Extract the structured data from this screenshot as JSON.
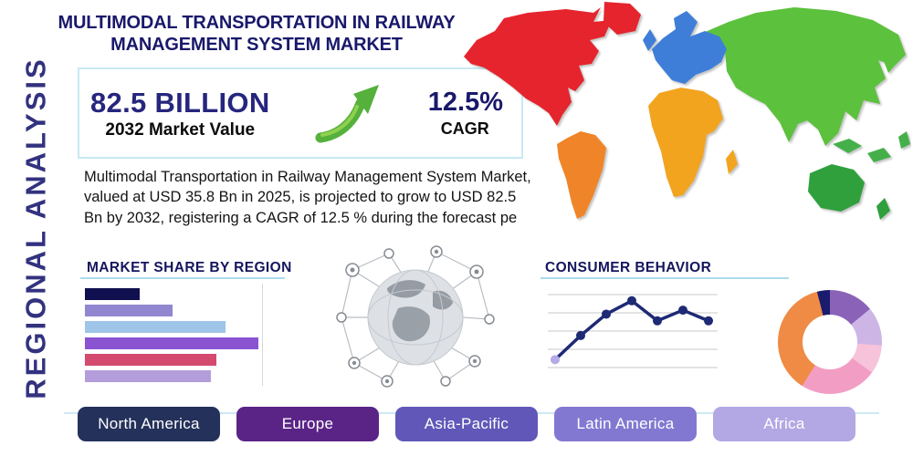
{
  "side_label": "REGIONAL ANALYSIS",
  "title": {
    "line1": "MULTIMODAL TRANSPORTATION IN RAILWAY",
    "line2": "MANAGEMENT SYSTEM MARKET"
  },
  "stats": {
    "market_value": "82.5 BILLION",
    "market_value_caption": "2032 Market Value",
    "cagr_value": "12.5%",
    "cagr_caption": "CAGR"
  },
  "description": "Multimodal Transportation in Railway Management System Market, valued at USD 35.8 Bn in 2025, is projected to grow to USD 82.5 Bn by 2032, registering a CAGR of 12.5 % during the forecast pe",
  "sections": {
    "market_share_title": "MARKET SHARE BY REGION",
    "consumer_behavior_title": "CONSUMER BEHAVIOR"
  },
  "region_buttons": [
    {
      "label": "North America",
      "color": "#24315b"
    },
    {
      "label": "Europe",
      "color": "#5a2487"
    },
    {
      "label": "Asia-Pacific",
      "color": "#6057b8"
    },
    {
      "label": "Latin America",
      "color": "#8378d1"
    },
    {
      "label": "Africa",
      "color": "#b3a7e4"
    }
  ],
  "icons": {
    "growth-arrow-icon": {
      "shape": "curved-arrow-up-right",
      "color": "#55b03c"
    },
    "globe-network-icon": {
      "shape": "globe-with-network-nodes",
      "color": "#a9adb3"
    },
    "world-map": {
      "shape": "world-continents-map"
    }
  },
  "accent_colors": {
    "navy_heading": "#19196b",
    "teal_line": "#c9e8f4"
  },
  "chart_data": [
    {
      "id": "market-share-by-region",
      "type": "bar",
      "title": "MARKET SHARE BY REGION",
      "orientation": "horizontal",
      "categories": [
        "",
        "",
        "",
        "",
        "",
        ""
      ],
      "values": [
        30,
        48,
        77,
        95,
        72,
        69
      ],
      "colors": [
        "#101050",
        "#9186d0",
        "#9fc5e8",
        "#8a53d2",
        "#d44a6e",
        "#b49ddb"
      ],
      "xlim": [
        0,
        100
      ],
      "grid": false
    },
    {
      "id": "consumer-behavior-trend",
      "type": "line",
      "title": "CONSUMER BEHAVIOR",
      "x": [
        1,
        2,
        3,
        4,
        5,
        6,
        7
      ],
      "values": [
        1.0,
        2.8,
        4.4,
        5.4,
        3.9,
        4.7,
        3.9
      ],
      "y_range": [
        0,
        6
      ],
      "line_color": "#1e2a74",
      "first_point_color": "#b5a9e6",
      "grid": true
    },
    {
      "id": "regional-share-donut",
      "type": "pie",
      "donut": true,
      "slice_order": "clockwise-from-top",
      "slices": [
        {
          "value": 14,
          "color": "#8a63b8"
        },
        {
          "value": 12,
          "color": "#cdb6e6"
        },
        {
          "value": 9,
          "color": "#f6c3da"
        },
        {
          "value": 24,
          "color": "#f29ec4"
        },
        {
          "value": 37,
          "color": "#ef8b44"
        },
        {
          "value": 4,
          "color": "#1b1b6e"
        }
      ]
    }
  ],
  "map_regions": {
    "north-america": "#e6242d",
    "greenland": "#e6242d",
    "south-america": "#f08428",
    "europe": "#3e7ed8",
    "uk": "#3e7ed8",
    "africa": "#f2a41f",
    "madagascar": "#f2a41f",
    "asia": "#5cc13d",
    "japan": "#5cc13d",
    "southeast-asia": "#45b04a",
    "australia": "#2fa03c",
    "new-zealand": "#2fa03c"
  }
}
